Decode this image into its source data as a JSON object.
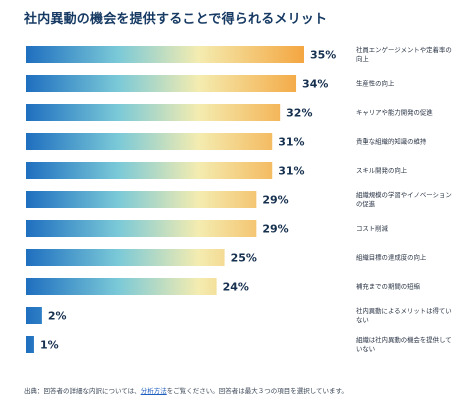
{
  "title": "社内異動の機会を提供することで得られるメリット",
  "footnote": {
    "prefix": "出典：回答者の詳細な内訳については、",
    "link": "分析方法",
    "suffix": "をご覧ください。回答者は最大３つの項目を選択しています。"
  },
  "colors": {
    "bar_start": "#1f6fc0",
    "bar_mid": "#7ac9d8",
    "bar_light": "#f4ecb0",
    "bar_end": "#f4a641",
    "value_text": "#16304f",
    "label_text": "#2a3445"
  },
  "chart_data": {
    "type": "bar",
    "orientation": "horizontal",
    "title": "社内異動の機会を提供することで得られるメリット",
    "value_unit": "%",
    "xlim": [
      0,
      35
    ],
    "categories": [
      "社員エンゲージメントや定着率の向上",
      "生産性の向上",
      "キャリアや能力開発の促進",
      "貴重な組織的知識の維持",
      "スキル開発の向上",
      "組織規模の学習やイノベーションの促進",
      "コスト削減",
      "組織目標の達成度の向上",
      "補充までの期間の短縮",
      "社内異動によるメリットは得ていない",
      "組織は社内異動の機会を提供していない"
    ],
    "values": [
      35,
      34,
      32,
      31,
      31,
      29,
      29,
      25,
      24,
      2,
      1
    ]
  }
}
